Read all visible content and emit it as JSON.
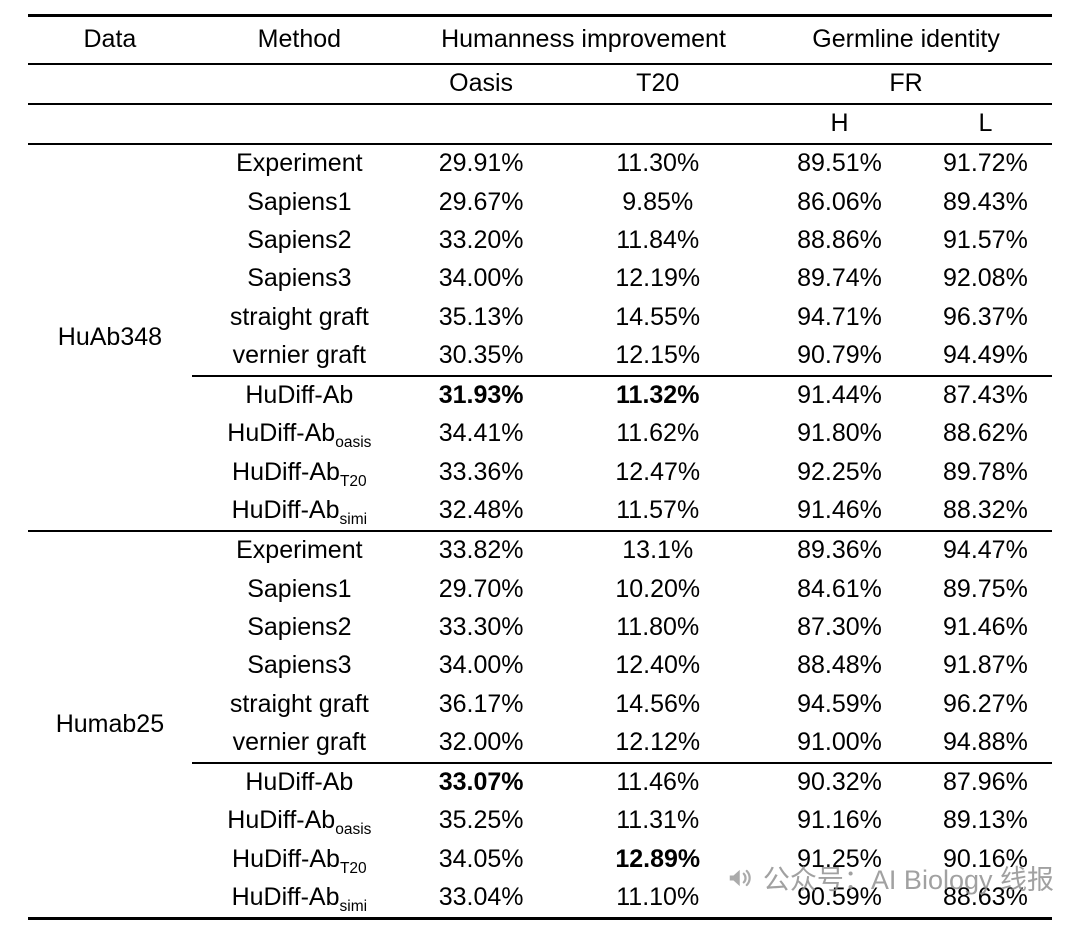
{
  "table": {
    "headers": {
      "data": "Data",
      "method": "Method",
      "humanness": "Humanness improvement",
      "germline": "Germline identity",
      "oasis": "Oasis",
      "t20": "T20",
      "fr": "FR",
      "h": "H",
      "l": "L"
    },
    "groups": [
      {
        "label": "HuAb348",
        "rows": [
          {
            "method": {
              "base": "Experiment",
              "sub": ""
            },
            "rule_above": false,
            "values": [
              {
                "text": "29.91%",
                "bold": false
              },
              {
                "text": "11.30%",
                "bold": false
              },
              {
                "text": "89.51%",
                "bold": false
              },
              {
                "text": "91.72%",
                "bold": false
              }
            ]
          },
          {
            "method": {
              "base": "Sapiens1",
              "sub": ""
            },
            "rule_above": false,
            "values": [
              {
                "text": "29.67%",
                "bold": false
              },
              {
                "text": "9.85%",
                "bold": false
              },
              {
                "text": "86.06%",
                "bold": false
              },
              {
                "text": "89.43%",
                "bold": false
              }
            ]
          },
          {
            "method": {
              "base": "Sapiens2",
              "sub": ""
            },
            "rule_above": false,
            "values": [
              {
                "text": "33.20%",
                "bold": false
              },
              {
                "text": "11.84%",
                "bold": false
              },
              {
                "text": "88.86%",
                "bold": false
              },
              {
                "text": "91.57%",
                "bold": false
              }
            ]
          },
          {
            "method": {
              "base": "Sapiens3",
              "sub": ""
            },
            "rule_above": false,
            "values": [
              {
                "text": "34.00%",
                "bold": false
              },
              {
                "text": "12.19%",
                "bold": false
              },
              {
                "text": "89.74%",
                "bold": false
              },
              {
                "text": "92.08%",
                "bold": false
              }
            ]
          },
          {
            "method": {
              "base": "straight graft",
              "sub": ""
            },
            "rule_above": false,
            "values": [
              {
                "text": "35.13%",
                "bold": false
              },
              {
                "text": "14.55%",
                "bold": false
              },
              {
                "text": "94.71%",
                "bold": false
              },
              {
                "text": "96.37%",
                "bold": false
              }
            ]
          },
          {
            "method": {
              "base": "vernier graft",
              "sub": ""
            },
            "rule_above": false,
            "values": [
              {
                "text": "30.35%",
                "bold": false
              },
              {
                "text": "12.15%",
                "bold": false
              },
              {
                "text": "90.79%",
                "bold": false
              },
              {
                "text": "94.49%",
                "bold": false
              }
            ]
          },
          {
            "method": {
              "base": "HuDiff-Ab",
              "sub": ""
            },
            "rule_above": true,
            "values": [
              {
                "text": "31.93%",
                "bold": true
              },
              {
                "text": "11.32%",
                "bold": true
              },
              {
                "text": "91.44%",
                "bold": false
              },
              {
                "text": "87.43%",
                "bold": false
              }
            ]
          },
          {
            "method": {
              "base": "HuDiff-Ab",
              "sub": "oasis"
            },
            "rule_above": false,
            "values": [
              {
                "text": "34.41%",
                "bold": false
              },
              {
                "text": "11.62%",
                "bold": false
              },
              {
                "text": "91.80%",
                "bold": false
              },
              {
                "text": "88.62%",
                "bold": false
              }
            ]
          },
          {
            "method": {
              "base": "HuDiff-Ab",
              "sub": "T20"
            },
            "rule_above": false,
            "values": [
              {
                "text": "33.36%",
                "bold": false
              },
              {
                "text": "12.47%",
                "bold": false
              },
              {
                "text": "92.25%",
                "bold": false
              },
              {
                "text": "89.78%",
                "bold": false
              }
            ]
          },
          {
            "method": {
              "base": "HuDiff-Ab",
              "sub": "simi"
            },
            "rule_above": false,
            "values": [
              {
                "text": "32.48%",
                "bold": false
              },
              {
                "text": "11.57%",
                "bold": false
              },
              {
                "text": "91.46%",
                "bold": false
              },
              {
                "text": "88.32%",
                "bold": false
              }
            ]
          }
        ]
      },
      {
        "label": "Humab25",
        "rows": [
          {
            "method": {
              "base": "Experiment",
              "sub": ""
            },
            "rule_above": false,
            "values": [
              {
                "text": "33.82%",
                "bold": false
              },
              {
                "text": "13.1%",
                "bold": false
              },
              {
                "text": "89.36%",
                "bold": false
              },
              {
                "text": "94.47%",
                "bold": false
              }
            ]
          },
          {
            "method": {
              "base": "Sapiens1",
              "sub": ""
            },
            "rule_above": false,
            "values": [
              {
                "text": "29.70%",
                "bold": false
              },
              {
                "text": "10.20%",
                "bold": false
              },
              {
                "text": "84.61%",
                "bold": false
              },
              {
                "text": "89.75%",
                "bold": false
              }
            ]
          },
          {
            "method": {
              "base": "Sapiens2",
              "sub": ""
            },
            "rule_above": false,
            "values": [
              {
                "text": "33.30%",
                "bold": false
              },
              {
                "text": "11.80%",
                "bold": false
              },
              {
                "text": "87.30%",
                "bold": false
              },
              {
                "text": "91.46%",
                "bold": false
              }
            ]
          },
          {
            "method": {
              "base": "Sapiens3",
              "sub": ""
            },
            "rule_above": false,
            "values": [
              {
                "text": "34.00%",
                "bold": false
              },
              {
                "text": "12.40%",
                "bold": false
              },
              {
                "text": "88.48%",
                "bold": false
              },
              {
                "text": "91.87%",
                "bold": false
              }
            ]
          },
          {
            "method": {
              "base": "straight graft",
              "sub": ""
            },
            "rule_above": false,
            "values": [
              {
                "text": "36.17%",
                "bold": false
              },
              {
                "text": "14.56%",
                "bold": false
              },
              {
                "text": "94.59%",
                "bold": false
              },
              {
                "text": "96.27%",
                "bold": false
              }
            ]
          },
          {
            "method": {
              "base": "vernier graft",
              "sub": ""
            },
            "rule_above": false,
            "values": [
              {
                "text": "32.00%",
                "bold": false
              },
              {
                "text": "12.12%",
                "bold": false
              },
              {
                "text": "91.00%",
                "bold": false
              },
              {
                "text": "94.88%",
                "bold": false
              }
            ]
          },
          {
            "method": {
              "base": "HuDiff-Ab",
              "sub": ""
            },
            "rule_above": true,
            "values": [
              {
                "text": "33.07%",
                "bold": true
              },
              {
                "text": "11.46%",
                "bold": false
              },
              {
                "text": "90.32%",
                "bold": false
              },
              {
                "text": "87.96%",
                "bold": false
              }
            ]
          },
          {
            "method": {
              "base": "HuDiff-Ab",
              "sub": "oasis"
            },
            "rule_above": false,
            "values": [
              {
                "text": "35.25%",
                "bold": false
              },
              {
                "text": "11.31%",
                "bold": false
              },
              {
                "text": "91.16%",
                "bold": false
              },
              {
                "text": "89.13%",
                "bold": false
              }
            ]
          },
          {
            "method": {
              "base": "HuDiff-Ab",
              "sub": "T20"
            },
            "rule_above": false,
            "values": [
              {
                "text": "34.05%",
                "bold": false
              },
              {
                "text": "12.89%",
                "bold": true
              },
              {
                "text": "91.25%",
                "bold": false
              },
              {
                "text": "90.16%",
                "bold": false
              }
            ]
          },
          {
            "method": {
              "base": "HuDiff-Ab",
              "sub": "simi"
            },
            "rule_above": false,
            "values": [
              {
                "text": "33.04%",
                "bold": false
              },
              {
                "text": "11.10%",
                "bold": false
              },
              {
                "text": "90.59%",
                "bold": false
              },
              {
                "text": "88.63%",
                "bold": false
              }
            ]
          }
        ]
      }
    ]
  },
  "watermark": {
    "icon": "megaphone-icon",
    "text": "公众号：AI Biology 线报"
  }
}
